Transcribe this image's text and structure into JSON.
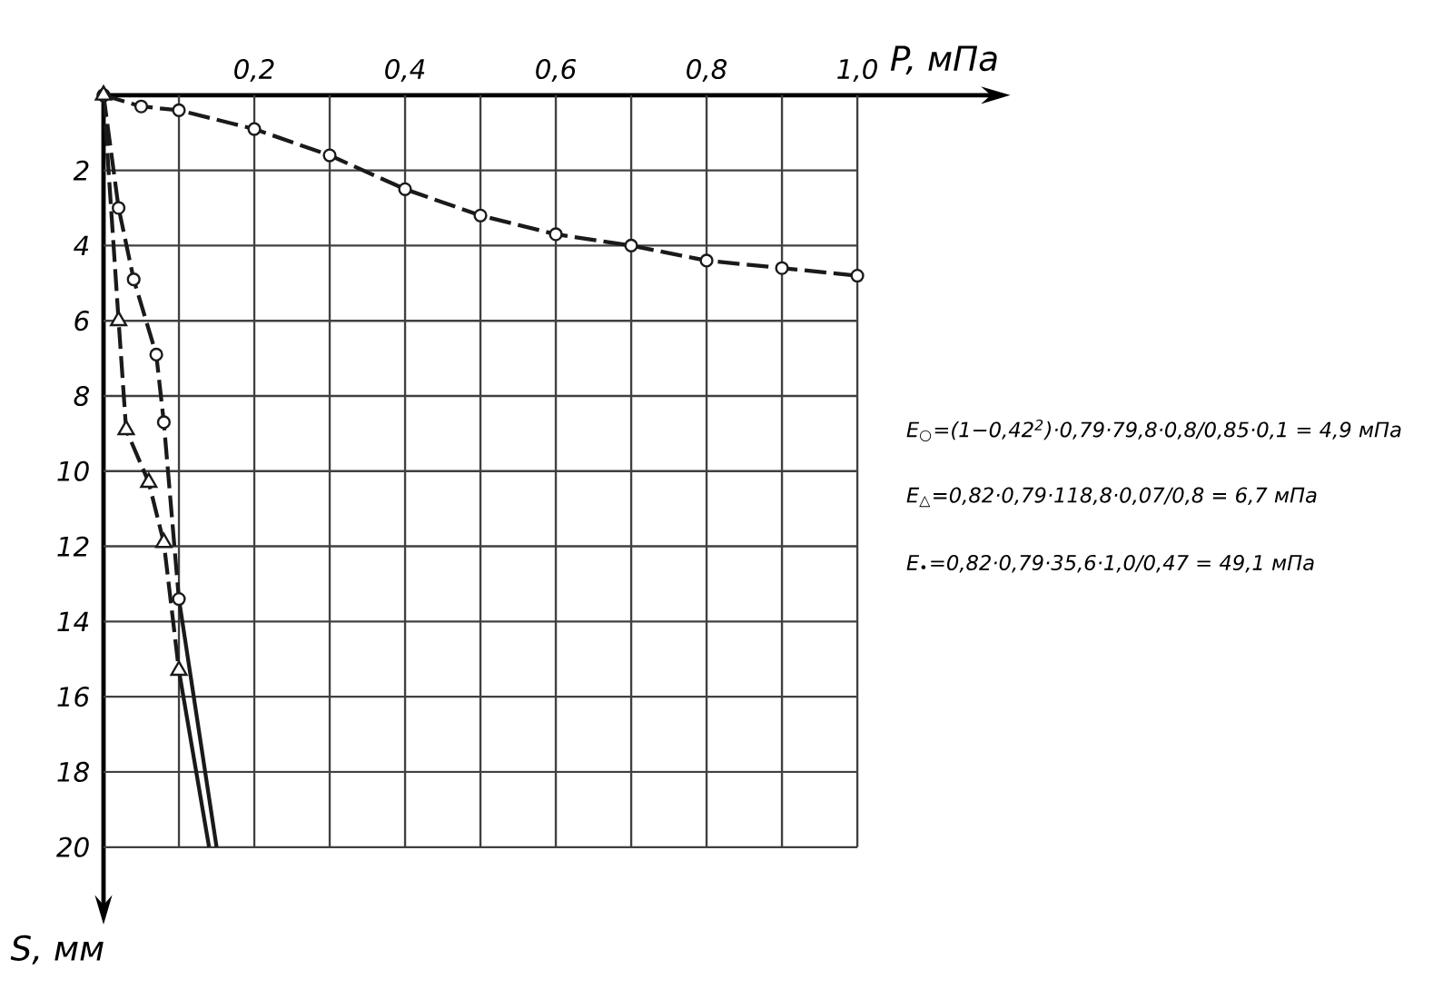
{
  "chart_data": {
    "type": "line",
    "xlabel": "P, мПа",
    "ylabel": "S, мм",
    "xlim": [
      0,
      1.18
    ],
    "ylim": [
      21.6,
      0
    ],
    "xticks": [
      {
        "value": 0.1,
        "label": null
      },
      {
        "value": 0.2,
        "label": "0,2"
      },
      {
        "value": 0.3,
        "label": null
      },
      {
        "value": 0.4,
        "label": "0,4"
      },
      {
        "value": 0.5,
        "label": null
      },
      {
        "value": 0.6,
        "label": "0,6"
      },
      {
        "value": 0.7,
        "label": null
      },
      {
        "value": 0.8,
        "label": "0,8"
      },
      {
        "value": 0.9,
        "label": null
      },
      {
        "value": 1.0,
        "label": "1,0"
      }
    ],
    "yticks": [
      2,
      4,
      6,
      8,
      10,
      12,
      14,
      16,
      18,
      20
    ],
    "grid": true,
    "line_style": "dashed",
    "series": [
      {
        "color": "#1a1a1a",
        "marker": "circle",
        "x": [
          0,
          0.02,
          0.04,
          0.07,
          0.08,
          0.1
        ],
        "values": [
          0,
          3.0,
          4.9,
          6.9,
          8.7,
          13.4
        ]
      },
      {
        "color": "#1a1a1a",
        "marker": "circle",
        "x": [
          0,
          0.05,
          0.1,
          0.2,
          0.3,
          0.4,
          0.5,
          0.6,
          0.7,
          0.8,
          0.9,
          1.0
        ],
        "values": [
          0,
          0.3,
          0.4,
          0.9,
          1.6,
          2.5,
          3.2,
          3.7,
          4.0,
          4.4,
          4.6,
          4.8
        ]
      },
      {
        "color": "#1a1a1a",
        "marker": "triangle",
        "x": [
          0,
          0.02,
          0.03,
          0.06,
          0.08,
          0.1
        ],
        "values": [
          0,
          6.0,
          8.9,
          10.3,
          11.9,
          15.3
        ]
      },
      {
        "color": "#1a1a1a",
        "marker": "none",
        "line_style": "solid",
        "x": [
          0.1,
          0.15
        ],
        "values": [
          13.4,
          20
        ]
      },
      {
        "color": "#1a1a1a",
        "marker": "none",
        "line_style": "solid",
        "x": [
          0.1,
          0.14
        ],
        "values": [
          15.3,
          20
        ]
      }
    ],
    "annotations": [
      "E$_{○}$=(1−0,42$^{2}$)·0,79·79,8·0,8/0,85·0,1 = 4,9 мПа",
      "E$_{△}$=0,82·0,79·118,8·0,07/0,8 = 6,7 мПа",
      "E$_{•}$=0,82·0,79·35,6·1,0/0,47 = 49,1 мПа"
    ]
  }
}
